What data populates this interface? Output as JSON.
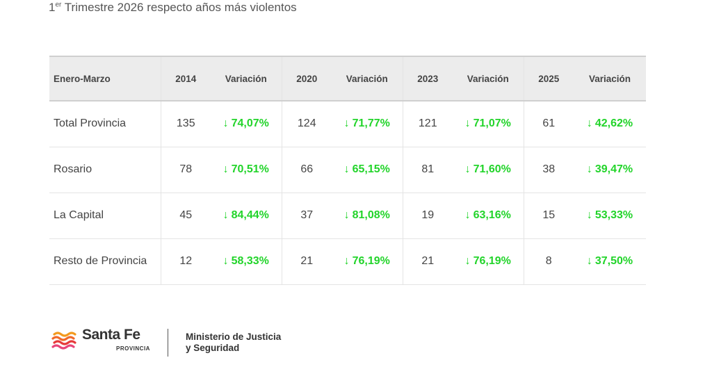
{
  "title": {
    "ordinal": "1",
    "ordinal_suffix": "er",
    "text": " Trimestre 2026 respecto años más violentos"
  },
  "table": {
    "headers": [
      "Enero-Marzo",
      "2014",
      "Variación",
      "2020",
      "Variación",
      "2023",
      "Variación",
      "2025",
      "Variación"
    ],
    "rows": [
      {
        "label": "Total Provincia",
        "cells": [
          "135",
          "74,07%",
          "124",
          "71,77%",
          "121",
          "71,07%",
          "61",
          "42,62%"
        ]
      },
      {
        "label": "Rosario",
        "cells": [
          "78",
          "70,51%",
          "66",
          "65,15%",
          "81",
          "71,60%",
          "38",
          "39,47%"
        ]
      },
      {
        "label": "La Capital",
        "cells": [
          "45",
          "84,44%",
          "37",
          "81,08%",
          "19",
          "63,16%",
          "15",
          "53,33%"
        ]
      },
      {
        "label": "Resto de Provincia",
        "cells": [
          "12",
          "58,33%",
          "21",
          "76,19%",
          "21",
          "76,19%",
          "8",
          "37,50%"
        ]
      }
    ],
    "arrow_glyph": "↓"
  },
  "footer": {
    "brand": "Santa Fe",
    "brand_sub": "PROVINCIA",
    "ministry_line1": "Ministerio de Justicia",
    "ministry_line2": "y Seguridad"
  },
  "colors": {
    "accent_green": "#22d42a",
    "header_bg": "#ececec",
    "logo_orange": "#f39a1e",
    "logo_red": "#e63a3a",
    "logo_pink": "#e8457a"
  }
}
